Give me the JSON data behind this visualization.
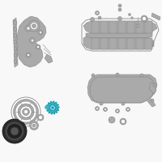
{
  "bg_color": "#f8f8f8",
  "line_color": "#888888",
  "line_color2": "#aaaaaa",
  "dark_line": "#666666",
  "highlight_teal": "#3ab8cc",
  "highlight_teal2": "#1a9aaa",
  "white": "#ffffff",
  "lw_main": 0.6,
  "lw_thin": 0.4,
  "lw_thick": 0.8
}
